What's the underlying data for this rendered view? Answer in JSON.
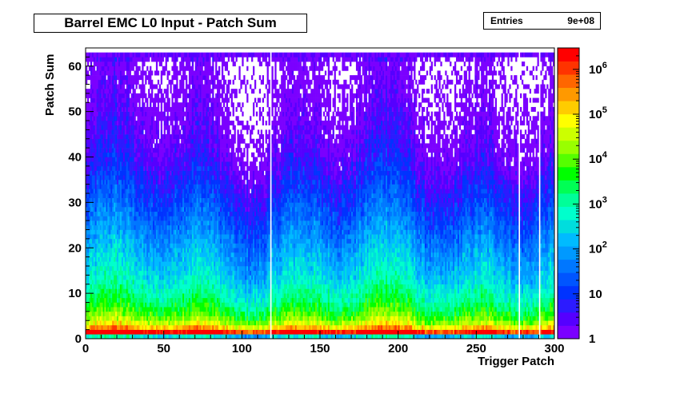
{
  "title": "Barrel EMC L0 Input - Patch Sum",
  "stats": {
    "label": "Entries",
    "value": "9e+08"
  },
  "chart_data": {
    "type": "heatmap",
    "title": "Barrel EMC L0 Input - Patch Sum",
    "xlabel": "Trigger Patch",
    "ylabel": "Patch Sum",
    "xlim": [
      0,
      300
    ],
    "ylim": [
      0,
      64
    ],
    "x_ticks": [
      0,
      50,
      100,
      150,
      200,
      250,
      300
    ],
    "y_ticks": [
      0,
      10,
      20,
      30,
      40,
      50,
      60
    ],
    "z_scale": "log",
    "zlim": [
      1,
      3000000
    ],
    "z_ticks": [
      {
        "value": 1,
        "label": "1"
      },
      {
        "value": 10,
        "label": "10"
      },
      {
        "value": 100,
        "label": "10",
        "exp": "2"
      },
      {
        "value": 1000,
        "label": "10",
        "exp": "3"
      },
      {
        "value": 10000,
        "label": "10",
        "exp": "4"
      },
      {
        "value": 100000,
        "label": "10",
        "exp": "5"
      },
      {
        "value": 1000000,
        "label": "10",
        "exp": "6"
      }
    ],
    "palette": [
      "#7b00ff",
      "#5500ff",
      "#2c1bff",
      "#0033ff",
      "#0055ff",
      "#0077ff",
      "#0099ff",
      "#00bbff",
      "#00dddd",
      "#00ffcc",
      "#00ff99",
      "#00ff55",
      "#00ff00",
      "#55ff00",
      "#99ff00",
      "#ccff00",
      "#ffff00",
      "#ffcc00",
      "#ff9900",
      "#ff6600",
      "#ff3300",
      "#ff0000"
    ],
    "profile_by_patch_sum": [
      {
        "y": 0,
        "counts": 300
      },
      {
        "y": 1,
        "counts": 2000000
      },
      {
        "y": 2,
        "counts": 150000
      },
      {
        "y": 3,
        "counts": 30000
      },
      {
        "y": 4,
        "counts": 12000
      },
      {
        "y": 5,
        "counts": 6000
      },
      {
        "y": 6,
        "counts": 3500
      },
      {
        "y": 8,
        "counts": 1500
      },
      {
        "y": 10,
        "counts": 800
      },
      {
        "y": 12,
        "counts": 400
      },
      {
        "y": 15,
        "counts": 200
      },
      {
        "y": 18,
        "counts": 120
      },
      {
        "y": 20,
        "counts": 80
      },
      {
        "y": 25,
        "counts": 30
      },
      {
        "y": 30,
        "counts": 12
      },
      {
        "y": 35,
        "counts": 5
      },
      {
        "y": 40,
        "counts": 2.5
      },
      {
        "y": 45,
        "counts": 1.5
      },
      {
        "y": 50,
        "counts": 1
      },
      {
        "y": 55,
        "counts": 0.7
      },
      {
        "y": 60,
        "counts": 0.55
      },
      {
        "y": 62,
        "counts": 2
      }
    ],
    "empty_patches": [
      118,
      277,
      290
    ]
  }
}
